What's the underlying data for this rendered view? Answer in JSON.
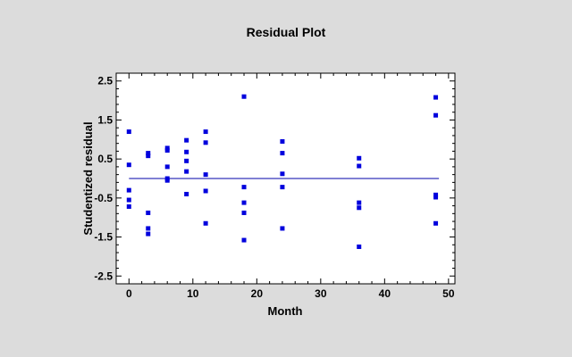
{
  "chart_data": {
    "type": "scatter",
    "title": "Residual Plot",
    "xlabel": "Month",
    "ylabel": "Studentized residual",
    "xlim": [
      -2,
      51
    ],
    "ylim": [
      -2.7,
      2.7
    ],
    "xticks": [
      0,
      10,
      20,
      30,
      40,
      50
    ],
    "xtick_labels": [
      "0",
      "10",
      "20",
      "30",
      "40",
      "50"
    ],
    "yticks": [
      -2.5,
      -1.5,
      -0.5,
      0.5,
      1.5,
      2.5
    ],
    "ytick_labels": [
      "-2.5",
      "-1.5",
      "-0.5",
      "0.5",
      "1.5",
      "2.5"
    ],
    "reference_line_y": 0,
    "grid": false,
    "point_color": "#0000dd",
    "line_color": "#0000aa",
    "plot_background": "#ffffff",
    "page_background": "#dcdcdc",
    "x": [
      0,
      0,
      0,
      0,
      0,
      3,
      3,
      3,
      3,
      3,
      6,
      6,
      6,
      6,
      6,
      9,
      9,
      9,
      9,
      9,
      12,
      12,
      12,
      12,
      12,
      18,
      18,
      18,
      18,
      18,
      24,
      24,
      24,
      24,
      24,
      36,
      36,
      36,
      36,
      36,
      48,
      48,
      48,
      48,
      48
    ],
    "y": [
      1.2,
      0.35,
      -0.3,
      -0.55,
      -0.72,
      0.65,
      0.58,
      -0.88,
      -1.28,
      -1.42,
      0.78,
      0.72,
      0.3,
      0.0,
      -0.05,
      0.98,
      0.68,
      0.45,
      0.18,
      -0.4,
      1.2,
      0.92,
      0.1,
      -0.32,
      -1.15,
      2.1,
      -0.22,
      -0.62,
      -0.88,
      -1.58,
      0.95,
      0.65,
      0.12,
      -0.22,
      -1.28,
      0.52,
      0.32,
      -0.62,
      -0.75,
      -1.75,
      2.08,
      1.62,
      -0.42,
      -0.48,
      -1.15
    ]
  }
}
